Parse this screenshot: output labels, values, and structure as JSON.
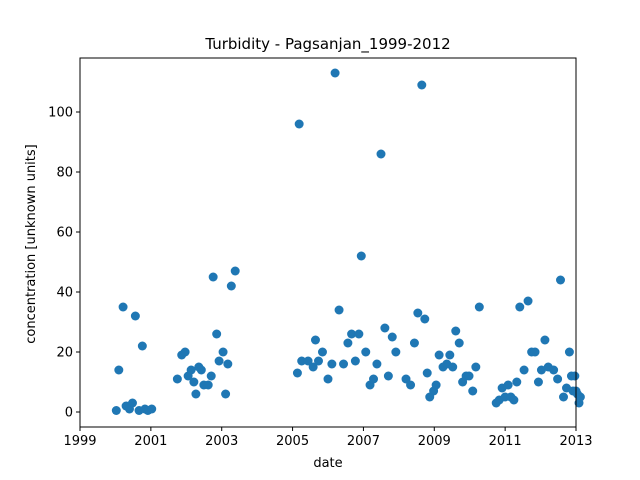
{
  "chart_data": {
    "type": "scatter",
    "title": "Turbidity - Pagsanjan_1999-2012",
    "xlabel": "date",
    "ylabel": "concentration [unknown units]",
    "x_axis_kind": "date",
    "xlim": [
      "1999-01-01",
      "2013-01-01"
    ],
    "ylim": [
      -5,
      118
    ],
    "x_ticks": [
      "1999",
      "2001",
      "2003",
      "2005",
      "2007",
      "2009",
      "2011",
      "2013"
    ],
    "y_ticks": [
      0,
      20,
      40,
      60,
      80,
      100
    ],
    "grid": false,
    "marker_color": "#1f77b4",
    "points": [
      [
        "2000-01-10",
        0.5
      ],
      [
        "2000-02-05",
        14
      ],
      [
        "2000-03-20",
        35
      ],
      [
        "2000-04-20",
        2
      ],
      [
        "2000-05-25",
        1
      ],
      [
        "2000-06-25",
        3
      ],
      [
        "2000-07-25",
        32
      ],
      [
        "2000-09-01",
        0.5
      ],
      [
        "2000-10-05",
        22
      ],
      [
        "2000-11-01",
        1
      ],
      [
        "2000-12-01",
        0.5
      ],
      [
        "2001-01-10",
        1
      ],
      [
        "2001-10-01",
        11
      ],
      [
        "2001-11-15",
        19
      ],
      [
        "2001-12-20",
        20
      ],
      [
        "2002-01-20",
        12
      ],
      [
        "2002-02-20",
        14
      ],
      [
        "2002-03-20",
        10
      ],
      [
        "2002-04-10",
        6
      ],
      [
        "2002-05-10",
        15
      ],
      [
        "2002-06-05",
        14
      ],
      [
        "2002-07-01",
        9
      ],
      [
        "2002-08-15",
        9
      ],
      [
        "2002-09-15",
        12
      ],
      [
        "2002-10-05",
        45
      ],
      [
        "2002-11-10",
        26
      ],
      [
        "2002-12-05",
        17
      ],
      [
        "2003-01-15",
        20
      ],
      [
        "2003-02-10",
        6
      ],
      [
        "2003-03-05",
        16
      ],
      [
        "2003-04-10",
        42
      ],
      [
        "2003-05-20",
        47
      ],
      [
        "2005-02-20",
        13
      ],
      [
        "2005-03-10",
        96
      ],
      [
        "2005-04-05",
        17
      ],
      [
        "2005-06-10",
        17
      ],
      [
        "2005-08-01",
        15
      ],
      [
        "2005-08-25",
        24
      ],
      [
        "2005-09-25",
        17
      ],
      [
        "2005-11-05",
        20
      ],
      [
        "2006-01-01",
        11
      ],
      [
        "2006-02-10",
        16
      ],
      [
        "2006-03-15",
        113
      ],
      [
        "2006-04-25",
        34
      ],
      [
        "2006-06-10",
        16
      ],
      [
        "2006-07-25",
        23
      ],
      [
        "2006-09-01",
        26
      ],
      [
        "2006-10-10",
        17
      ],
      [
        "2006-11-15",
        26
      ],
      [
        "2006-12-10",
        52
      ],
      [
        "2007-01-25",
        20
      ],
      [
        "2007-03-10",
        9
      ],
      [
        "2007-04-15",
        11
      ],
      [
        "2007-05-20",
        16
      ],
      [
        "2007-07-01",
        86
      ],
      [
        "2007-08-10",
        28
      ],
      [
        "2007-09-15",
        12
      ],
      [
        "2007-10-25",
        25
      ],
      [
        "2007-12-01",
        20
      ],
      [
        "2008-03-15",
        11
      ],
      [
        "2008-05-01",
        9
      ],
      [
        "2008-06-10",
        23
      ],
      [
        "2008-07-15",
        33
      ],
      [
        "2008-08-25",
        109
      ],
      [
        "2008-09-25",
        31
      ],
      [
        "2008-10-20",
        13
      ],
      [
        "2008-11-15",
        5
      ],
      [
        "2008-12-25",
        7
      ],
      [
        "2009-01-20",
        9
      ],
      [
        "2009-02-20",
        19
      ],
      [
        "2009-04-01",
        15
      ],
      [
        "2009-05-10",
        16
      ],
      [
        "2009-06-10",
        19
      ],
      [
        "2009-07-10",
        15
      ],
      [
        "2009-08-10",
        27
      ],
      [
        "2009-09-15",
        23
      ],
      [
        "2009-10-20",
        10
      ],
      [
        "2009-11-25",
        12
      ],
      [
        "2009-12-25",
        12
      ],
      [
        "2010-02-01",
        7
      ],
      [
        "2010-03-05",
        15
      ],
      [
        "2010-04-10",
        35
      ],
      [
        "2010-10-01",
        3
      ],
      [
        "2010-11-01",
        4
      ],
      [
        "2010-12-01",
        8
      ],
      [
        "2011-01-01",
        5
      ],
      [
        "2011-02-01",
        9
      ],
      [
        "2011-03-01",
        5
      ],
      [
        "2011-04-01",
        4
      ],
      [
        "2011-05-01",
        10
      ],
      [
        "2011-06-01",
        35
      ],
      [
        "2011-07-15",
        14
      ],
      [
        "2011-08-25",
        37
      ],
      [
        "2011-10-01",
        20
      ],
      [
        "2011-11-05",
        20
      ],
      [
        "2011-12-10",
        10
      ],
      [
        "2012-01-10",
        14
      ],
      [
        "2012-02-15",
        24
      ],
      [
        "2012-03-20",
        15
      ],
      [
        "2012-05-15",
        14
      ],
      [
        "2012-06-25",
        11
      ],
      [
        "2012-07-25",
        44
      ],
      [
        "2012-08-25",
        5
      ],
      [
        "2012-09-25",
        8
      ],
      [
        "2012-10-25",
        20
      ],
      [
        "2012-11-15",
        12
      ],
      [
        "2012-12-01",
        7
      ],
      [
        "2012-12-20",
        12
      ],
      [
        "2013-01-01",
        7
      ],
      [
        "2013-01-15",
        6
      ],
      [
        "2013-02-01",
        3
      ],
      [
        "2013-02-15",
        5
      ]
    ]
  }
}
